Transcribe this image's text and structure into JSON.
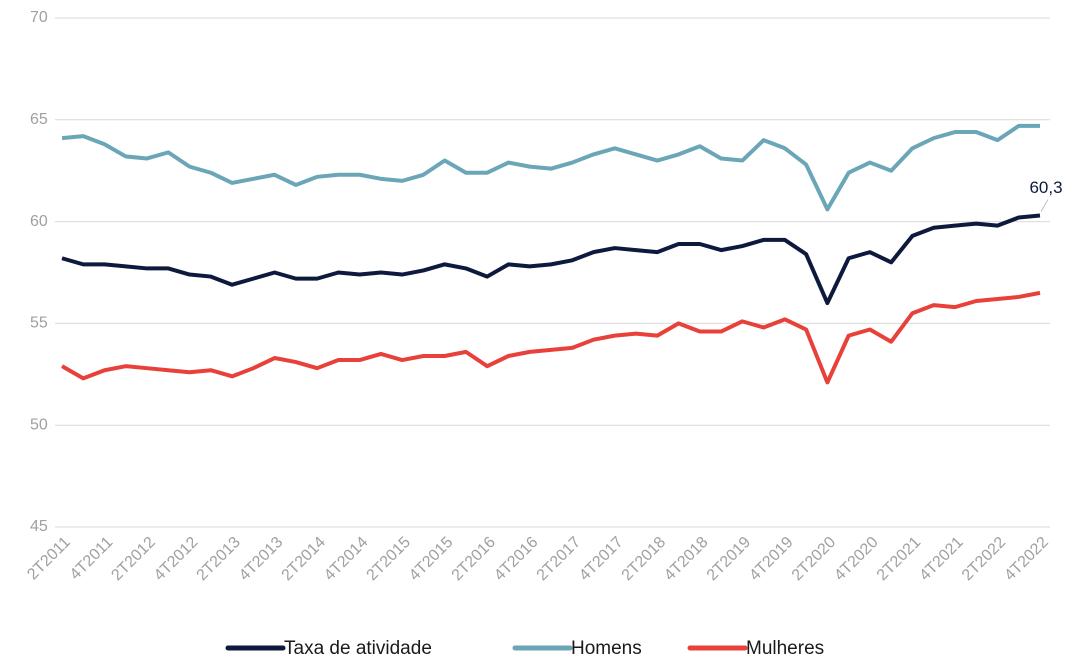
{
  "chart_data": {
    "type": "line",
    "categories": [
      "2T2011",
      null,
      "4T2011",
      null,
      "2T2012",
      null,
      "4T2012",
      null,
      "2T2013",
      null,
      "4T2013",
      null,
      "2T2014",
      null,
      "4T2014",
      null,
      "2T2015",
      null,
      "4T2015",
      null,
      "2T2016",
      null,
      "4T2016",
      null,
      "2T2017",
      null,
      "4T2017",
      null,
      "2T2018",
      null,
      "4T2018",
      null,
      "2T2019",
      null,
      "4T2019",
      null,
      "2T2020",
      null,
      "4T2020",
      null,
      "2T2021",
      null,
      "4T2021",
      null,
      "2T2022",
      null,
      "4T2022"
    ],
    "series": [
      {
        "name": "Taxa de atividade",
        "color": "#0e1a3d",
        "values": [
          58.2,
          57.9,
          57.9,
          57.8,
          57.7,
          57.7,
          57.4,
          57.3,
          56.9,
          57.2,
          57.5,
          57.2,
          57.2,
          57.5,
          57.4,
          57.5,
          57.4,
          57.6,
          57.9,
          57.7,
          57.3,
          57.9,
          57.8,
          57.9,
          58.1,
          58.5,
          58.7,
          58.6,
          58.5,
          58.9,
          58.9,
          58.6,
          58.8,
          59.1,
          59.1,
          58.4,
          56.0,
          58.2,
          58.5,
          58.0,
          59.3,
          59.7,
          59.8,
          59.9,
          59.8,
          60.2,
          60.3
        ],
        "value_labels": [
          null,
          null,
          null,
          null,
          null,
          null,
          null,
          null,
          null,
          null,
          null,
          null,
          null,
          null,
          null,
          null,
          null,
          null,
          null,
          null,
          null,
          null,
          null,
          null,
          null,
          null,
          null,
          null,
          null,
          null,
          null,
          null,
          null,
          null,
          null,
          null,
          null,
          null,
          null,
          null,
          null,
          null,
          null,
          null,
          null,
          null,
          "60,3"
        ]
      },
      {
        "name": "Homens",
        "color": "#6aa6b8",
        "values": [
          64.1,
          64.2,
          63.8,
          63.2,
          63.1,
          63.4,
          62.7,
          62.4,
          61.9,
          62.1,
          62.3,
          61.8,
          62.2,
          62.3,
          62.3,
          62.1,
          62.0,
          62.3,
          63.0,
          62.4,
          62.4,
          62.9,
          62.7,
          62.6,
          62.9,
          63.3,
          63.6,
          63.3,
          63.0,
          63.3,
          63.7,
          63.1,
          63.0,
          64.0,
          63.6,
          62.8,
          60.6,
          62.4,
          62.9,
          62.5,
          63.6,
          64.1,
          64.4,
          64.4,
          64.0,
          64.7,
          64.7
        ]
      },
      {
        "name": "Mulheres",
        "color": "#e8413a",
        "values": [
          52.9,
          52.3,
          52.7,
          52.9,
          52.8,
          52.7,
          52.6,
          52.7,
          52.4,
          52.8,
          53.3,
          53.1,
          52.8,
          53.2,
          53.2,
          53.5,
          53.2,
          53.4,
          53.4,
          53.6,
          52.9,
          53.4,
          53.6,
          53.7,
          53.8,
          54.2,
          54.4,
          54.5,
          54.4,
          55.0,
          54.6,
          54.6,
          55.1,
          54.8,
          55.2,
          54.7,
          52.1,
          54.4,
          54.7,
          54.1,
          55.5,
          55.9,
          55.8,
          56.1,
          56.2,
          56.3,
          56.5
        ]
      }
    ],
    "ylim": [
      45,
      70
    ],
    "yticks": [
      45,
      50,
      55,
      60,
      65,
      70
    ],
    "grid": true,
    "legend": "bottom"
  }
}
